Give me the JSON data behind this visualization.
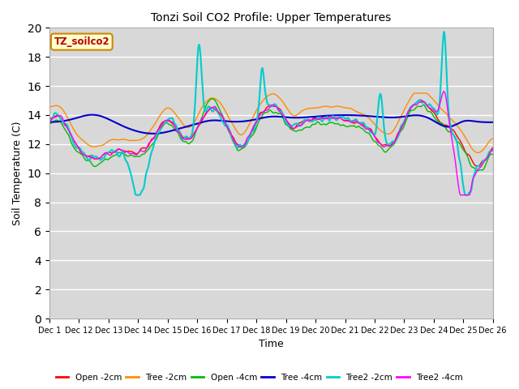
{
  "title": "Tonzi Soil CO2 Profile: Upper Temperatures",
  "xlabel": "Time",
  "ylabel": "Soil Temperature (C)",
  "ylim": [
    0,
    20
  ],
  "yticks": [
    0,
    2,
    4,
    6,
    8,
    10,
    12,
    14,
    16,
    18,
    20
  ],
  "bg_color": "#d8d8d8",
  "fig_color": "#ffffff",
  "watermark": "TZ_soilco2",
  "series_order": [
    "Open -2cm",
    "Tree -2cm",
    "Open -4cm",
    "Tree -4cm",
    "Tree2 -2cm",
    "Tree2 -4cm"
  ],
  "series": {
    "Open -2cm": {
      "color": "#ff0000",
      "lw": 1.0
    },
    "Tree -2cm": {
      "color": "#ff8c00",
      "lw": 1.0
    },
    "Open -4cm": {
      "color": "#00bb00",
      "lw": 1.0
    },
    "Tree -4cm": {
      "color": "#0000cc",
      "lw": 1.5
    },
    "Tree2 -2cm": {
      "color": "#00cccc",
      "lw": 1.5
    },
    "Tree2 -4cm": {
      "color": "#ff00ff",
      "lw": 1.0
    }
  },
  "xticklabels": [
    "Dec 1",
    "Dec 12",
    "Dec 13",
    "Dec 14",
    "Dec 15",
    "Dec 16",
    "Dec 17",
    "Dec 18",
    "Dec 19",
    "Dec 20",
    "Dec 21",
    "Dec 22",
    "Dec 23",
    "Dec 24",
    "Dec 25",
    "Dec 26"
  ]
}
